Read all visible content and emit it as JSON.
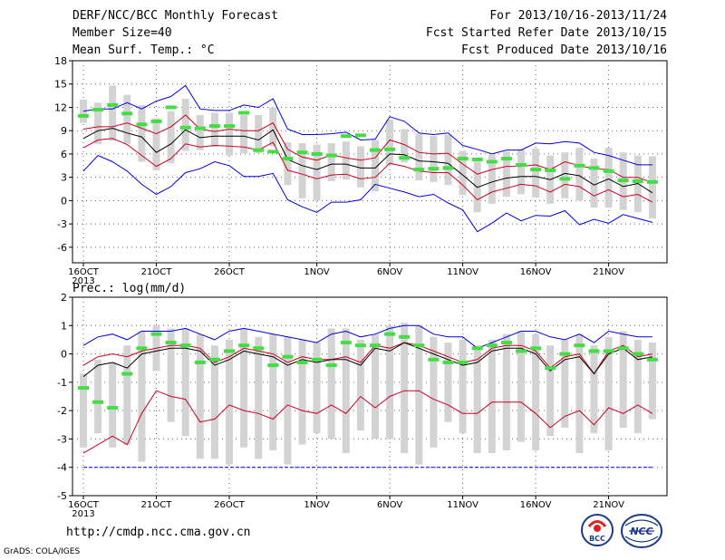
{
  "header": {
    "title": "DERF/NCC/BCC Monthly Forecast",
    "member_size": "Member Size=40",
    "variable": "Mean Surf. Temp.: °C",
    "period": "For 2013/10/16-2013/11/24",
    "start_date": "Fcst Started Refer Date 2013/10/15",
    "produced_date": "Fcst Produced Date 2013/10/16"
  },
  "footer": {
    "url": "http://cmdp.ncc.cma.gov.cn",
    "credit": "GrADS: COLA/IGES",
    "logo_left": "BCC",
    "logo_right": "NCC"
  },
  "colors": {
    "max": "#0000dd",
    "spread": "#cc0022",
    "mean": "#000000",
    "box": "#d3d3d3",
    "obs": "#44dd44",
    "axis": "#000000"
  },
  "chart_data": [
    {
      "type": "line",
      "title": "",
      "ylabel": "",
      "xlabel": "",
      "ylim": [
        -8,
        18
      ],
      "y_ticks": [
        -6,
        -3,
        0,
        3,
        6,
        9,
        12,
        15,
        18
      ],
      "x_tick_labels": [
        "16OCT",
        "21OCT",
        "26OCT",
        "1NOV",
        "6NOV",
        "11NOV",
        "16NOV",
        "21NOV"
      ],
      "x_sub_label": "2013",
      "x_tick_days": [
        0,
        5,
        10,
        16,
        21,
        26,
        31,
        36
      ],
      "grid": true,
      "days": 40,
      "series": [
        {
          "values": [
            11.5,
            11.8,
            11.8,
            12.6,
            11.8,
            12.8,
            13.4,
            14.8,
            11.8,
            11.6,
            11.6,
            12.3,
            12.0,
            13.1,
            9.2,
            8.5,
            8.5,
            8.6,
            8.8,
            7.8,
            7.9,
            10.8,
            10.2,
            8.7,
            8.5,
            8.7,
            7.1,
            6.6,
            6.0,
            6.5,
            6.5,
            7.4,
            7.3,
            7.6,
            7.4,
            6.2,
            5.8,
            5.2,
            4.6,
            4.6
          ]
        },
        {
          "values": [
            9.2,
            9.5,
            9.5,
            10.0,
            9.3,
            8.6,
            9.5,
            11.0,
            9.2,
            8.9,
            9.2,
            9.0,
            9.0,
            10.0,
            6.6,
            5.6,
            5.2,
            5.9,
            5.5,
            5.2,
            5.5,
            7.8,
            7.2,
            6.2,
            6.0,
            6.1,
            4.7,
            3.4,
            4.0,
            4.4,
            4.4,
            4.6,
            4.0,
            5.0,
            4.5,
            4.1,
            4.0,
            3.0,
            3.0,
            2.3
          ]
        },
        {
          "values": [
            8.0,
            9.0,
            9.3,
            8.7,
            8.2,
            6.2,
            7.3,
            9.1,
            8.1,
            8.3,
            8.3,
            8.3,
            7.8,
            9.1,
            5.3,
            4.5,
            4.0,
            4.7,
            4.7,
            4.2,
            4.2,
            6.0,
            5.9,
            5.1,
            5.0,
            4.8,
            3.3,
            1.7,
            2.4,
            2.9,
            3.1,
            3.1,
            2.7,
            3.5,
            3.2,
            2.0,
            2.8,
            1.8,
            2.2,
            1.0
          ]
        },
        {
          "values": [
            6.8,
            7.8,
            8.0,
            7.2,
            5.8,
            4.4,
            5.4,
            7.3,
            6.9,
            7.1,
            7.0,
            6.9,
            6.5,
            7.5,
            3.9,
            3.4,
            2.8,
            3.3,
            3.4,
            2.8,
            3.0,
            4.8,
            4.4,
            3.8,
            3.6,
            3.6,
            2.0,
            0.1,
            1.1,
            1.6,
            2.1,
            1.9,
            1.1,
            2.1,
            1.8,
            0.6,
            1.4,
            0.5,
            0.8,
            -0.2
          ]
        },
        {
          "values": [
            3.8,
            5.8,
            5.0,
            3.8,
            2.1,
            0.8,
            1.8,
            3.6,
            4.1,
            5.0,
            4.5,
            3.1,
            3.1,
            3.5,
            0.1,
            -0.8,
            -1.5,
            -0.2,
            -0.2,
            0.1,
            2.1,
            1.6,
            1.1,
            0.5,
            0.8,
            -0.3,
            -1.2,
            -4.0,
            -2.9,
            -1.6,
            -2.6,
            -1.9,
            -2.0,
            -1.3,
            -3.1,
            -2.4,
            -2.9,
            -1.8,
            -2.3,
            -2.8
          ]
        }
      ],
      "box_high": [
        13.0,
        12.6,
        14.8,
        13.6,
        12.3,
        10.6,
        11.5,
        13.1,
        11.0,
        11.3,
        11.3,
        11.0,
        11.0,
        12.0,
        7.5,
        7.4,
        7.2,
        7.4,
        7.6,
        7.0,
        7.8,
        10.4,
        9.2,
        8.6,
        8.3,
        8.5,
        6.4,
        5.3,
        5.9,
        6.3,
        6.6,
        6.7,
        5.8,
        6.2,
        6.8,
        5.4,
        6.8,
        6.2,
        5.8,
        5.7
      ],
      "box_low": [
        10.0,
        7.3,
        7.7,
        7.3,
        5.0,
        3.9,
        4.8,
        6.4,
        6.5,
        6.9,
        5.8,
        6.1,
        6.1,
        7.0,
        2.0,
        0.3,
        0.0,
        2.5,
        2.7,
        1.7,
        1.2,
        4.6,
        4.9,
        2.6,
        2.4,
        2.0,
        0.7,
        -1.5,
        -0.4,
        0.5,
        0.8,
        0.4,
        -0.4,
        0.3,
        0.0,
        -0.9,
        -0.9,
        -1.2,
        -1.5,
        -2.3
      ],
      "obs": [
        10.9,
        11.7,
        12.3,
        11.2,
        9.8,
        10.2,
        12.0,
        9.4,
        9.3,
        9.6,
        9.6,
        11.3,
        6.5,
        6.3,
        5.4,
        6.2,
        6.0,
        5.8,
        8.3,
        8.4,
        6.5,
        6.6,
        5.5,
        4.0,
        4.1,
        4.2,
        5.4,
        5.3,
        5.0,
        5.4,
        4.6,
        4.0,
        3.9,
        2.8,
        4.5,
        4.2,
        3.8,
        2.6,
        2.5,
        2.4
      ]
    },
    {
      "type": "line",
      "title": "Prec.: log(mm/d)",
      "ylabel": "",
      "xlabel": "",
      "ylim": [
        -5,
        2
      ],
      "y_ticks": [
        -5,
        -4,
        -3,
        -2,
        -1,
        0,
        1,
        2
      ],
      "x_tick_labels": [
        "16OCT",
        "21OCT",
        "26OCT",
        "1NOV",
        "6NOV",
        "11NOV",
        "16NOV",
        "21NOV"
      ],
      "x_sub_label": "2013",
      "x_tick_days": [
        0,
        5,
        10,
        16,
        21,
        26,
        31,
        36
      ],
      "grid": true,
      "days": 40,
      "series": [
        {
          "values": [
            0.3,
            0.6,
            0.7,
            0.5,
            0.8,
            0.8,
            0.8,
            0.9,
            0.7,
            0.5,
            0.8,
            0.9,
            0.8,
            0.7,
            0.6,
            0.5,
            0.4,
            0.7,
            0.8,
            0.6,
            0.7,
            0.9,
            1.0,
            1.0,
            0.7,
            0.6,
            0.6,
            0.2,
            0.4,
            0.6,
            0.8,
            0.8,
            0.6,
            0.5,
            0.7,
            0.4,
            0.8,
            0.7,
            0.6,
            0.6
          ]
        },
        {
          "values": [
            -0.4,
            -0.1,
            0.0,
            -0.1,
            0.1,
            0.2,
            0.3,
            0.3,
            0.2,
            -0.3,
            -0.1,
            0.2,
            0.1,
            0.0,
            -0.3,
            -0.1,
            -0.2,
            -0.2,
            -0.1,
            -0.3,
            0.3,
            0.2,
            0.4,
            0.3,
            0.1,
            -0.1,
            -0.3,
            -0.2,
            0.2,
            0.3,
            0.3,
            0.1,
            -0.5,
            -0.1,
            0.0,
            -0.7,
            0.1,
            0.3,
            -0.1,
            0.0
          ]
        },
        {
          "values": [
            -0.8,
            -0.4,
            -0.3,
            -0.5,
            0.0,
            0.1,
            0.2,
            0.2,
            0.1,
            -0.4,
            -0.2,
            0.1,
            0.0,
            -0.1,
            -0.4,
            -0.2,
            -0.3,
            -0.2,
            -0.2,
            -0.4,
            0.2,
            0.1,
            0.4,
            0.2,
            0.0,
            -0.2,
            -0.4,
            -0.3,
            0.1,
            0.2,
            0.2,
            0.0,
            -0.6,
            -0.2,
            -0.1,
            -0.7,
            0.0,
            0.2,
            -0.2,
            -0.1
          ]
        },
        {
          "values": [
            -3.5,
            -3.2,
            -2.9,
            -3.2,
            -2.1,
            -1.3,
            -1.5,
            -1.6,
            -2.4,
            -2.3,
            -1.8,
            -2.0,
            -2.1,
            -2.3,
            -1.8,
            -2.0,
            -2.1,
            -1.8,
            -2.1,
            -1.5,
            -1.9,
            -1.5,
            -1.3,
            -1.3,
            -1.6,
            -1.8,
            -2.1,
            -2.1,
            -1.7,
            -1.7,
            -1.7,
            -2.1,
            -2.6,
            -2.2,
            -2.0,
            -2.5,
            -1.9,
            -2.1,
            -1.8,
            -2.1
          ]
        },
        {
          "values": [
            -4.0,
            -4.0,
            -4.0,
            -4.0,
            -4.0,
            -4.0,
            -4.0,
            -4.0,
            -4.0,
            -4.0,
            -4.0,
            -4.0,
            -4.0,
            -4.0,
            -4.0,
            -4.0,
            -4.0,
            -4.0,
            -4.0,
            -4.0,
            -4.0,
            -4.0,
            -4.0,
            -4.0,
            -4.0,
            -4.0,
            -4.0,
            -4.0,
            -4.0,
            -4.0,
            -4.0,
            -4.0,
            -4.0,
            -4.0,
            -4.0,
            -4.0,
            -4.0,
            -4.0,
            -4.0,
            -4.0
          ]
        }
      ],
      "box_high": [
        -0.7,
        -0.2,
        -0.3,
        0.3,
        0.8,
        1.0,
        0.9,
        0.9,
        0.7,
        0.3,
        0.5,
        0.9,
        0.6,
        0.7,
        0.6,
        0.5,
        0.4,
        0.9,
        0.9,
        0.5,
        0.7,
        1.0,
        1.1,
        1.0,
        0.6,
        0.4,
        0.5,
        0.3,
        0.5,
        0.7,
        0.8,
        0.7,
        0.3,
        0.5,
        0.7,
        0.3,
        0.6,
        0.8,
        0.5,
        0.4
      ],
      "box_low": [
        -3.3,
        -2.8,
        -3.3,
        -3.2,
        -3.8,
        -0.6,
        -2.4,
        -2.9,
        -3.7,
        -3.7,
        -3.9,
        -3.3,
        -3.7,
        -3.4,
        -3.9,
        -3.2,
        -2.8,
        -3.0,
        -3.5,
        -2.7,
        -3.0,
        -3.0,
        -3.5,
        -3.9,
        -3.3,
        -2.4,
        -2.8,
        -3.5,
        -3.5,
        -3.4,
        -3.1,
        -3.4,
        -2.9,
        -2.6,
        -3.5,
        -2.8,
        -3.4,
        -2.6,
        -2.8,
        -2.3
      ],
      "obs": [
        -1.2,
        -1.7,
        -1.9,
        -0.7,
        0.2,
        0.7,
        0.4,
        0.3,
        -0.3,
        -0.2,
        0.1,
        0.3,
        0.2,
        -0.4,
        -0.1,
        -0.3,
        -0.2,
        -0.4,
        0.4,
        0.3,
        0.3,
        0.7,
        0.6,
        0.3,
        -0.2,
        -0.3,
        -0.3,
        0.2,
        0.3,
        0.4,
        0.1,
        0.2,
        -0.5,
        0.0,
        0.3,
        0.1,
        0.1,
        0.2,
        0.0,
        -0.2
      ]
    }
  ]
}
